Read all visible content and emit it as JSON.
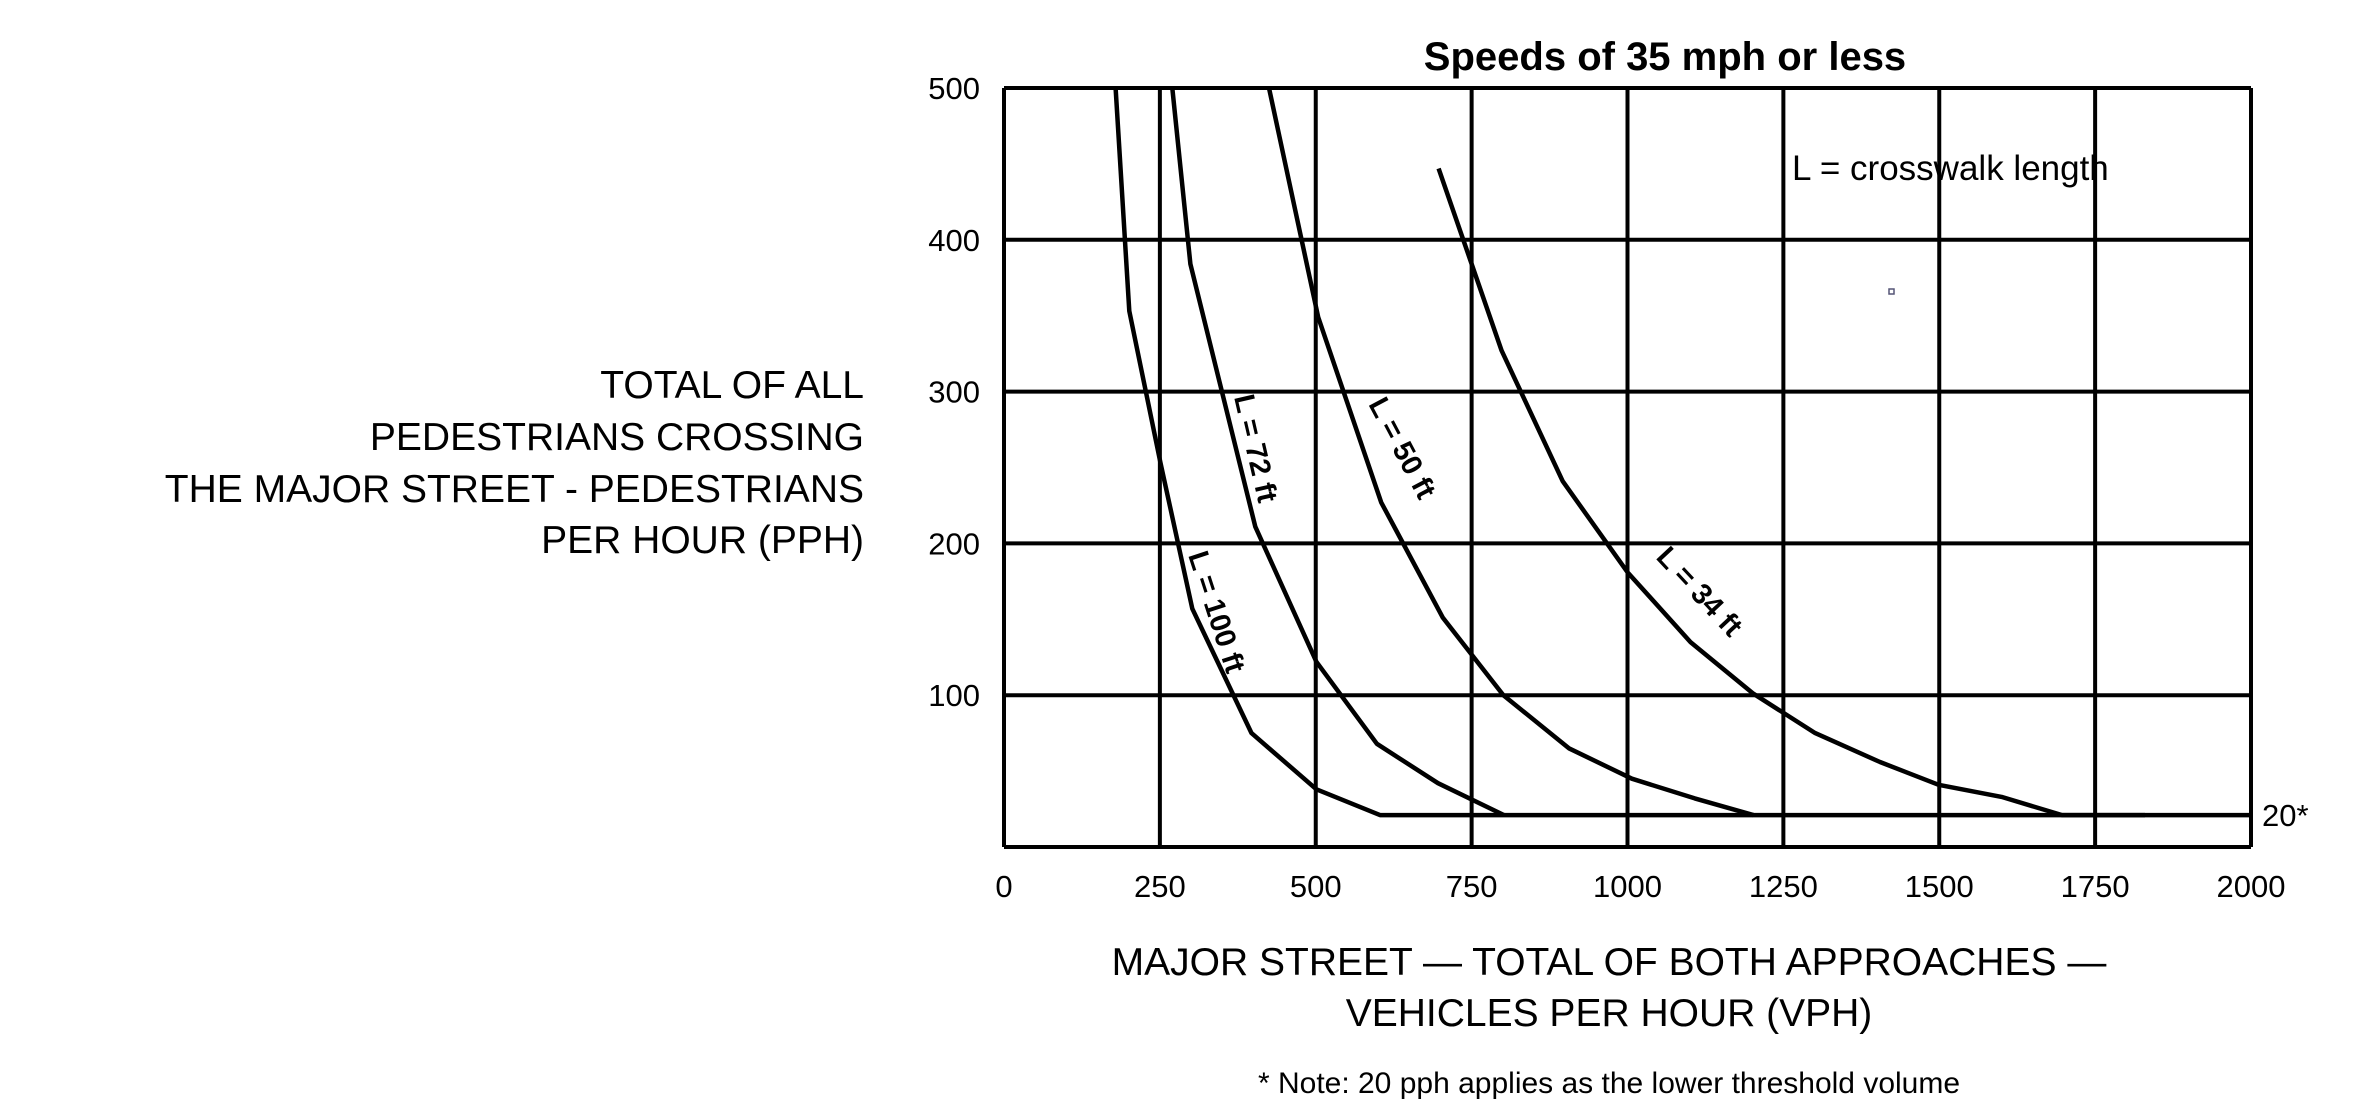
{
  "chart_data": {
    "type": "line",
    "title": "Speeds of 35 mph or less",
    "xlabel_lines": [
      "MAJOR STREET — TOTAL OF BOTH APPROACHES —",
      "VEHICLES PER HOUR (VPH)"
    ],
    "ylabel_lines": [
      "TOTAL OF ALL",
      "PEDESTRIANS CROSSING",
      "THE MAJOR STREET - PEDESTRIANS",
      "PER HOUR (PPH)"
    ],
    "xlim": [
      0,
      2000
    ],
    "ylim": [
      0,
      500
    ],
    "xticks": [
      0,
      250,
      500,
      750,
      1000,
      1250,
      1500,
      1750,
      2000
    ],
    "yticks": [
      100,
      200,
      300,
      400,
      500
    ],
    "grid": true,
    "legend_note": "L = crosswalk length",
    "threshold_label": "20*",
    "footnote": "* Note: 20 pph applies as the lower threshold volume",
    "series": [
      {
        "name": "L = 100 ft",
        "points": [
          [
            179,
            500
          ],
          [
            201,
            353
          ],
          [
            251,
            253
          ],
          [
            302,
            157
          ],
          [
            397,
            75
          ],
          [
            501,
            38
          ],
          [
            603,
            21
          ],
          [
            2000,
            21
          ]
        ]
      },
      {
        "name": "L = 72 ft",
        "points": [
          [
            270,
            500
          ],
          [
            299,
            384
          ],
          [
            403,
            211
          ],
          [
            501,
            122
          ],
          [
            598,
            68
          ],
          [
            696,
            42
          ],
          [
            802,
            21
          ]
        ]
      },
      {
        "name": "L = 50 ft",
        "points": [
          [
            425,
            500
          ],
          [
            504,
            349
          ],
          [
            605,
            227
          ],
          [
            704,
            151
          ],
          [
            801,
            100
          ],
          [
            906,
            65
          ],
          [
            1007,
            45
          ],
          [
            1108,
            32
          ],
          [
            1202,
            21
          ]
        ]
      },
      {
        "name": "L = 34 ft",
        "points": [
          [
            697,
            447
          ],
          [
            798,
            327
          ],
          [
            896,
            241
          ],
          [
            1000,
            181
          ],
          [
            1101,
            135
          ],
          [
            1202,
            101
          ],
          [
            1301,
            75
          ],
          [
            1405,
            56
          ],
          [
            1499,
            41
          ],
          [
            1600,
            33
          ],
          [
            1697,
            21
          ],
          [
            1830,
            21
          ]
        ]
      }
    ]
  }
}
